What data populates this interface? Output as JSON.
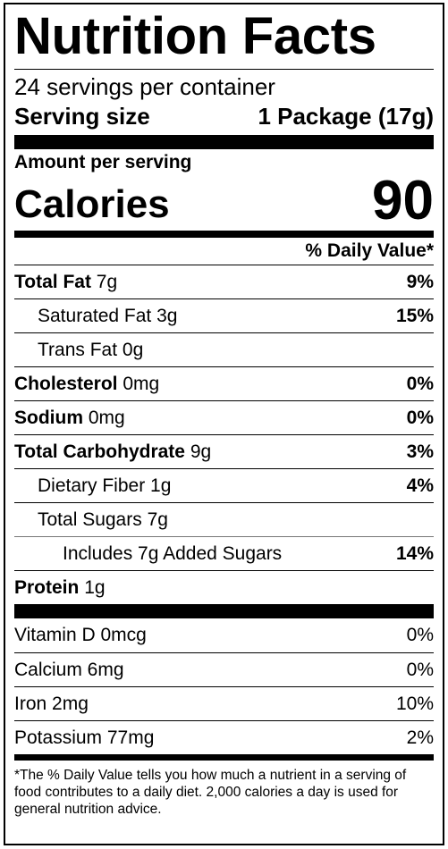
{
  "title": "Nutrition Facts",
  "servings_per_container": "24 servings per container",
  "serving_size": {
    "label": "Serving size",
    "value": "1 Package (17g)"
  },
  "amount_per_serving": "Amount per serving",
  "calories": {
    "label": "Calories",
    "value": "90"
  },
  "daily_value_header": "% Daily Value*",
  "nutrients": [
    {
      "name": "Total Fat",
      "amount": "7g",
      "dv": "9%",
      "bold": true,
      "indent": 0
    },
    {
      "name": "Saturated Fat",
      "amount": "3g",
      "dv": "15%",
      "bold": false,
      "indent": 1
    },
    {
      "name": "Trans Fat",
      "amount": "0g",
      "dv": "",
      "bold": false,
      "indent": 1
    },
    {
      "name": "Cholesterol",
      "amount": "0mg",
      "dv": "0%",
      "bold": true,
      "indent": 0
    },
    {
      "name": "Sodium",
      "amount": "0mg",
      "dv": "0%",
      "bold": true,
      "indent": 0
    },
    {
      "name": "Total Carbohydrate",
      "amount": "9g",
      "dv": "3%",
      "bold": true,
      "indent": 0
    },
    {
      "name": "Dietary Fiber",
      "amount": "1g",
      "dv": "4%",
      "bold": false,
      "indent": 1
    },
    {
      "name": "Total Sugars",
      "amount": "7g",
      "dv": "",
      "bold": false,
      "indent": 1
    },
    {
      "name": "Includes 7g Added Sugars",
      "amount": "",
      "dv": "14%",
      "bold": false,
      "indent": 2
    },
    {
      "name": "Protein",
      "amount": "1g",
      "dv": "",
      "bold": true,
      "indent": 0
    }
  ],
  "vitamins": [
    {
      "name": "Vitamin D 0mcg",
      "dv": "0%"
    },
    {
      "name": "Calcium 6mg",
      "dv": "0%"
    },
    {
      "name": "Iron 2mg",
      "dv": "10%"
    },
    {
      "name": "Potassium 77mg",
      "dv": "2%"
    }
  ],
  "footnote": "*The % Daily Value tells you how much a nutrient in a serving of food contributes to a daily diet. 2,000 calories a day is used for general nutrition advice."
}
